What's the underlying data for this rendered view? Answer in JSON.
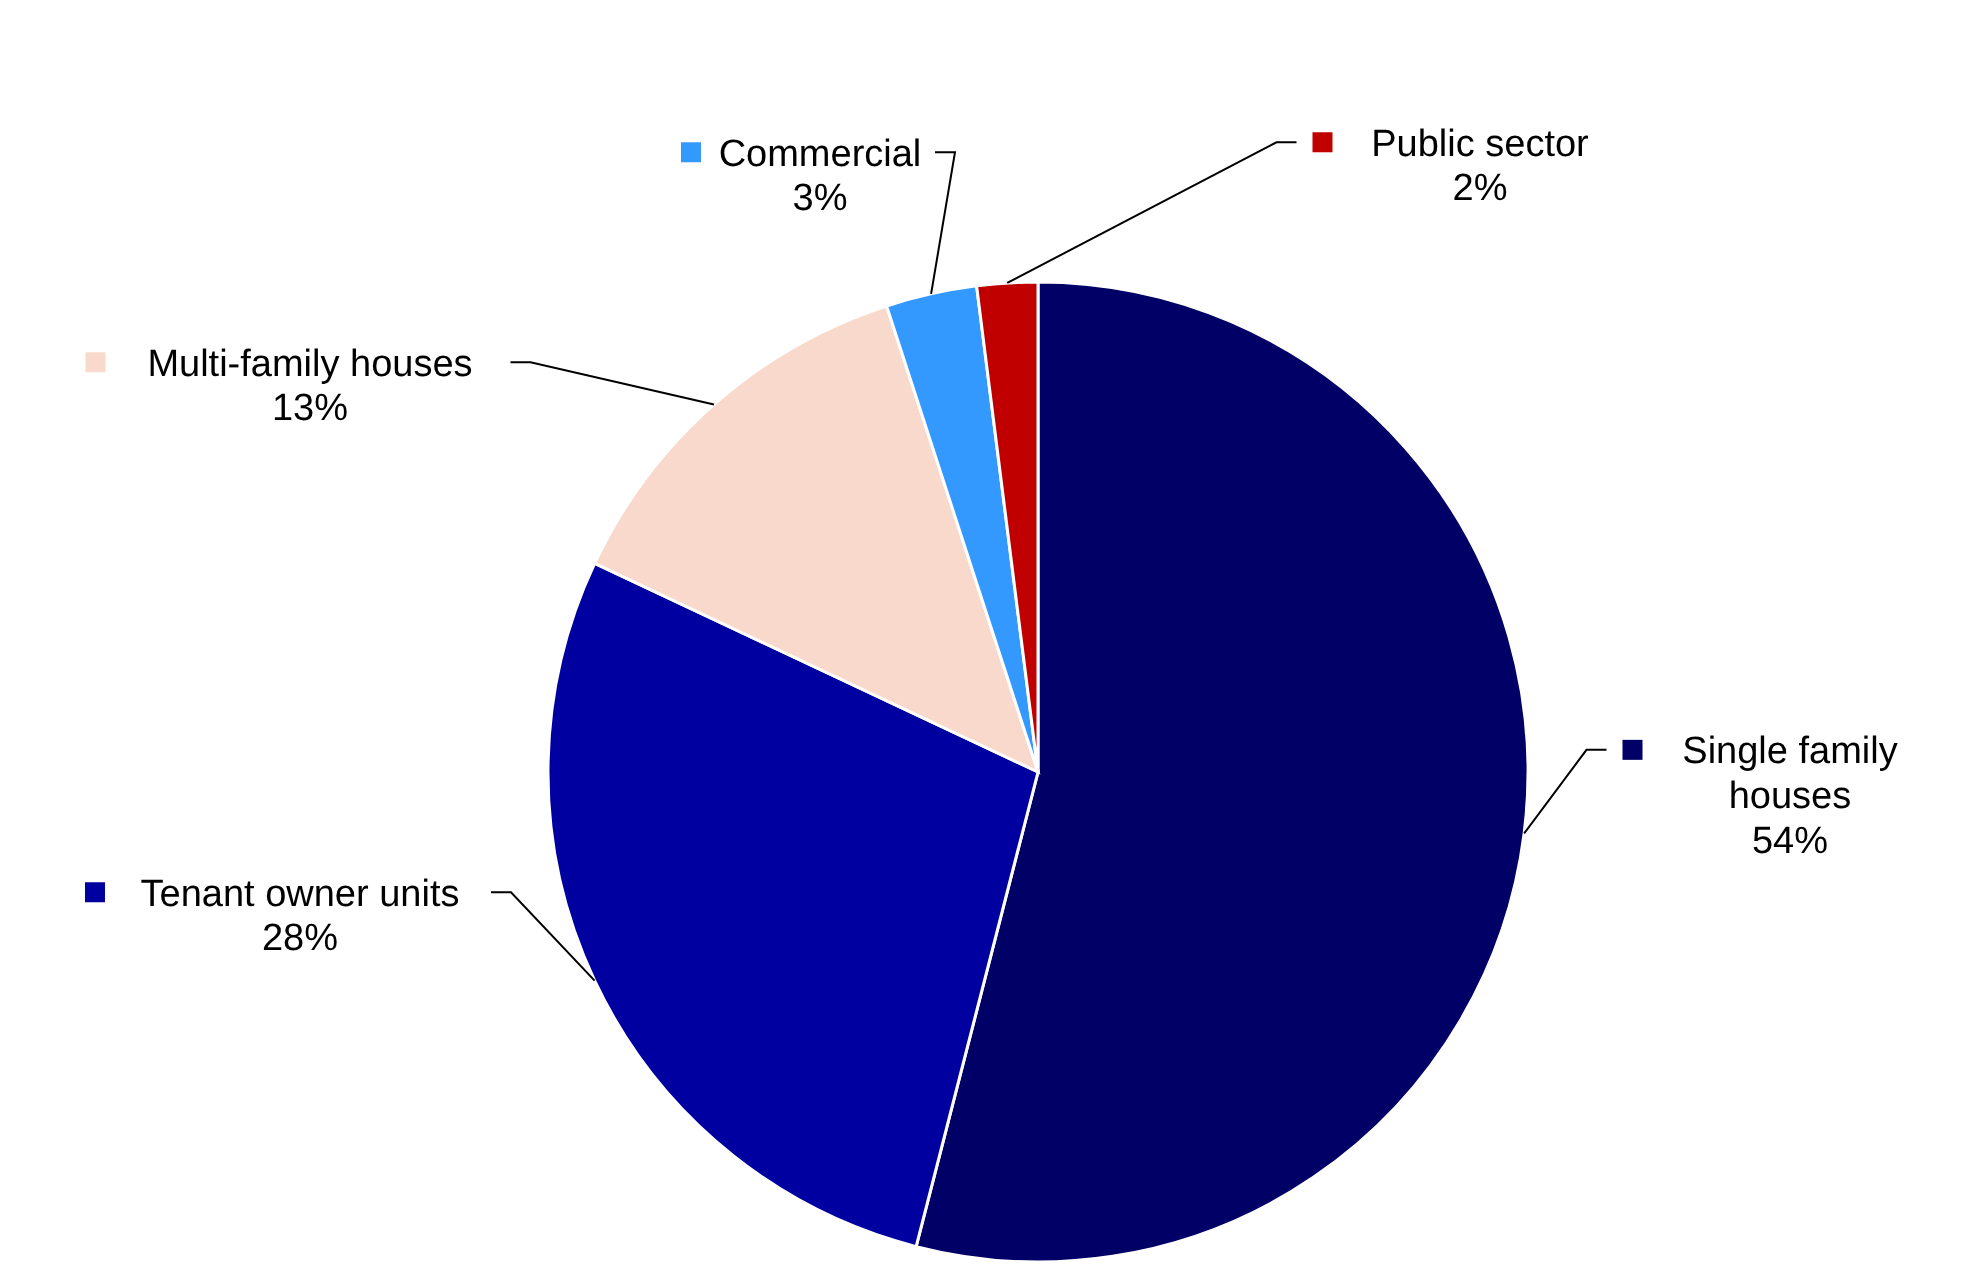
{
  "chart_data": {
    "type": "pie",
    "categories": [
      "Single family houses",
      "Tenant owner units",
      "Multi-family houses",
      "Commercial",
      "Public sector"
    ],
    "values": [
      54,
      28,
      13,
      3,
      2
    ],
    "value_labels": [
      "54%",
      "28%",
      "13%",
      "3%",
      "2%"
    ],
    "colors": [
      "#000066",
      "#0000a0",
      "#f8d9cc",
      "#3399ff",
      "#c00000"
    ],
    "legend": "right"
  }
}
